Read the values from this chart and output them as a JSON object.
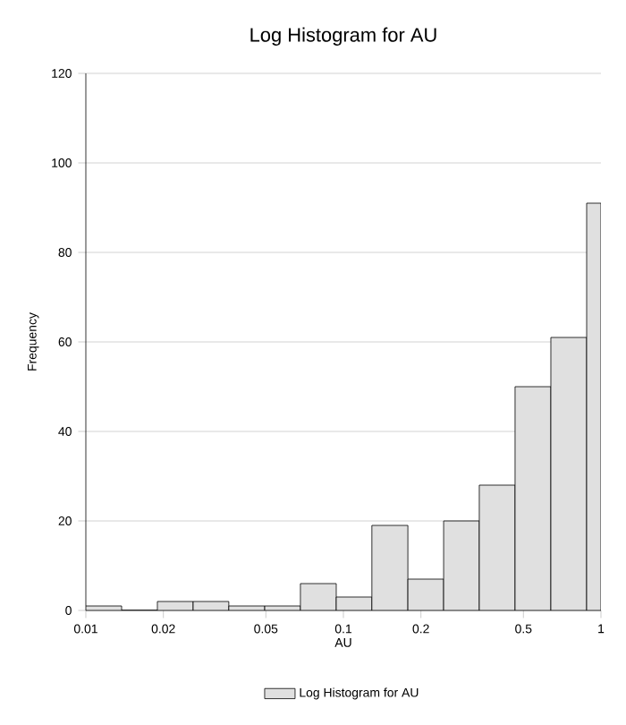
{
  "chart_data": {
    "type": "histogram",
    "title": "Log Histogram for AU",
    "xlabel": "AU",
    "ylabel": "Frequency",
    "bins": [
      0.01,
      0.01377,
      0.01896,
      0.0261,
      0.0359,
      0.0495,
      0.0681,
      0.0938,
      0.129,
      0.178,
      0.245,
      0.337,
      0.464,
      0.639,
      0.88,
      1
    ],
    "series": [
      {
        "name": "Log Histogram for AU",
        "color": "#e0e0e0",
        "values": [
          1,
          0,
          2,
          2,
          1,
          1,
          6,
          3,
          19,
          7,
          20,
          28,
          50,
          61,
          91
        ]
      }
    ],
    "log": "x",
    "xlim": [
      0.01,
      1
    ],
    "xticks": [
      0.01,
      0.02,
      0.05,
      0.1,
      0.2,
      0.5,
      1
    ],
    "ylim": [
      0,
      120
    ],
    "yticks": [
      0,
      20,
      40,
      60,
      80,
      100,
      120
    ],
    "grid": "y",
    "legend": "bottom"
  }
}
